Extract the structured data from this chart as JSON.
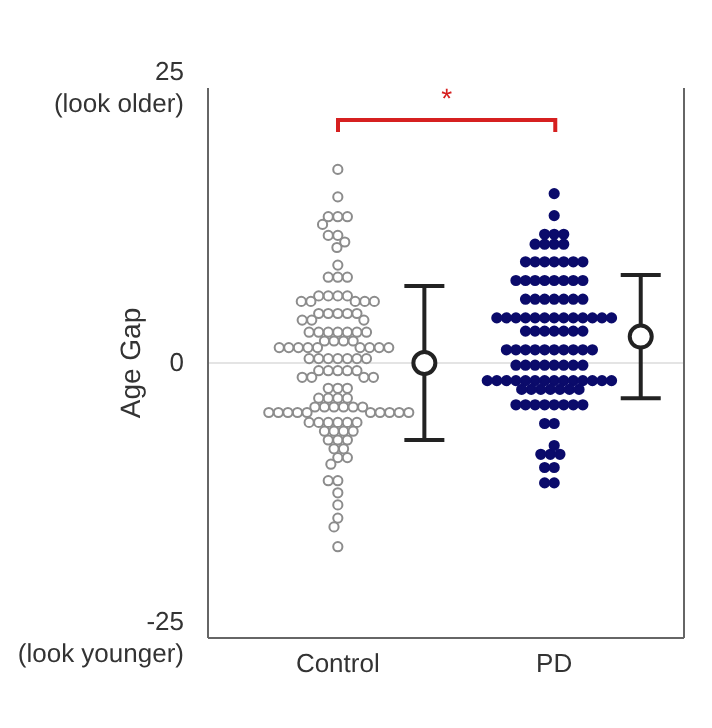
{
  "chart_data": {
    "type": "scatter",
    "ylabel": "Age Gap",
    "ylim": [
      -25,
      25
    ],
    "yticks": [
      {
        "value": -25,
        "label": "-25\n(look younger)"
      },
      {
        "value": 0,
        "label": "0"
      },
      {
        "value": 25,
        "label": "25\n(look older)"
      }
    ],
    "categories": [
      "Control",
      "PD"
    ],
    "marker": "circle",
    "annotations": [
      "*"
    ],
    "ref_lines": [
      {
        "axis": "y",
        "value": 0,
        "color": "#e4e4e4"
      }
    ],
    "series": [
      {
        "color": "#8c8c8c",
        "x": [
          "Control",
          "Control",
          "Control",
          "Control",
          "Control",
          "Control",
          "Control",
          "Control",
          "Control",
          "Control",
          "Control",
          "Control",
          "Control",
          "Control",
          "Control",
          "Control",
          "Control",
          "Control",
          "Control",
          "Control",
          "Control",
          "Control",
          "Control",
          "Control",
          "Control",
          "Control",
          "Control",
          "Control",
          "Control",
          "Control",
          "Control",
          "Control",
          "Control",
          "Control",
          "Control",
          "Control",
          "Control",
          "Control",
          "Control",
          "Control",
          "Control",
          "Control",
          "Control",
          "Control",
          "Control",
          "Control",
          "Control",
          "Control",
          "Control",
          "Control",
          "Control",
          "Control",
          "Control",
          "Control",
          "Control",
          "Control",
          "Control",
          "Control",
          "Control",
          "Control",
          "Control",
          "Control",
          "Control",
          "Control",
          "Control",
          "Control",
          "Control",
          "Control",
          "Control",
          "Control",
          "Control",
          "Control",
          "Control",
          "Control",
          "Control",
          "Control",
          "Control",
          "Control",
          "Control",
          "Control",
          "Control",
          "Control",
          "Control",
          "Control",
          "Control",
          "Control",
          "Control",
          "Control",
          "Control",
          "Control",
          "Control",
          "Control",
          "Control",
          "Control",
          "Control",
          "Control",
          "Control",
          "Control",
          "Control",
          "Control",
          "Control",
          "Control",
          "Control",
          "Control",
          "Control",
          "Control",
          "Control",
          "Control",
          "Control",
          "Control",
          "Control",
          "Control",
          "Control",
          "Control",
          "Control"
        ],
        "values": [
          17.6,
          15.1,
          13.3,
          13.3,
          13.3,
          12.6,
          11.6,
          11.6,
          11.0,
          10.5,
          8.9,
          7.8,
          7.8,
          7.8,
          6.1,
          6.1,
          6.1,
          6.1,
          5.6,
          5.6,
          5.6,
          5.6,
          5.6,
          4.5,
          4.5,
          4.5,
          4.5,
          4.5,
          3.9,
          3.9,
          3.9,
          2.8,
          2.8,
          2.8,
          2.8,
          2.8,
          2.8,
          2.8,
          2.0,
          2.0,
          2.0,
          2.0,
          1.4,
          1.4,
          1.4,
          1.4,
          1.4,
          1.4,
          1.4,
          1.4,
          1.4,
          0.4,
          0.4,
          0.4,
          0.4,
          0.4,
          0.4,
          0.4,
          -0.7,
          -0.7,
          -0.7,
          -0.7,
          -0.7,
          -1.3,
          -1.3,
          -1.3,
          -1.3,
          -2.3,
          -2.3,
          -2.3,
          -3.2,
          -3.2,
          -3.2,
          -3.2,
          -4.0,
          -4.0,
          -4.0,
          -4.0,
          -4.0,
          -4.0,
          -4.5,
          -4.5,
          -4.5,
          -4.5,
          -4.5,
          -4.5,
          -4.5,
          -4.5,
          -4.5,
          -4.5,
          -5.4,
          -5.4,
          -5.4,
          -5.4,
          -5.4,
          -5.4,
          -6.2,
          -6.2,
          -6.2,
          -6.2,
          -7.0,
          -7.0,
          -7.0,
          -7.8,
          -7.8,
          -8.6,
          -8.6,
          -9.2,
          -10.7,
          -10.7,
          -11.8,
          -12.9,
          -14.1,
          -14.9,
          -16.7
        ]
      },
      {
        "color": "#0b0b6b",
        "x": [
          "PD",
          "PD",
          "PD",
          "PD",
          "PD",
          "PD",
          "PD",
          "PD",
          "PD",
          "PD",
          "PD",
          "PD",
          "PD",
          "PD",
          "PD",
          "PD",
          "PD",
          "PD",
          "PD",
          "PD",
          "PD",
          "PD",
          "PD",
          "PD",
          "PD",
          "PD",
          "PD",
          "PD",
          "PD",
          "PD",
          "PD",
          "PD",
          "PD",
          "PD",
          "PD",
          "PD",
          "PD",
          "PD",
          "PD",
          "PD",
          "PD",
          "PD",
          "PD",
          "PD",
          "PD",
          "PD",
          "PD",
          "PD",
          "PD",
          "PD",
          "PD",
          "PD",
          "PD",
          "PD",
          "PD",
          "PD",
          "PD",
          "PD",
          "PD",
          "PD",
          "PD",
          "PD",
          "PD",
          "PD",
          "PD",
          "PD",
          "PD",
          "PD",
          "PD",
          "PD",
          "PD",
          "PD",
          "PD",
          "PD",
          "PD",
          "PD",
          "PD",
          "PD",
          "PD",
          "PD",
          "PD",
          "PD",
          "PD",
          "PD",
          "PD",
          "PD",
          "PD",
          "PD",
          "PD",
          "PD",
          "PD",
          "PD",
          "PD",
          "PD",
          "PD",
          "PD",
          "PD",
          "PD",
          "PD",
          "PD",
          "PD",
          "PD",
          "PD",
          "PD",
          "PD",
          "PD",
          "PD",
          "PD"
        ],
        "values": [
          15.4,
          13.4,
          11.7,
          11.7,
          11.7,
          10.8,
          10.8,
          10.8,
          10.8,
          9.2,
          9.2,
          9.2,
          9.2,
          9.2,
          9.2,
          9.2,
          7.5,
          7.5,
          7.5,
          7.5,
          7.5,
          7.5,
          7.5,
          7.5,
          5.8,
          5.8,
          5.8,
          5.8,
          5.8,
          5.8,
          5.8,
          4.1,
          4.1,
          4.1,
          4.1,
          4.1,
          4.1,
          4.1,
          4.1,
          4.1,
          4.1,
          4.1,
          4.1,
          4.1,
          2.9,
          2.9,
          2.9,
          2.9,
          2.9,
          2.9,
          2.9,
          1.2,
          1.2,
          1.2,
          1.2,
          1.2,
          1.2,
          1.2,
          1.2,
          1.2,
          1.2,
          -0.2,
          -0.2,
          -0.2,
          -0.2,
          -0.2,
          -0.2,
          -0.2,
          -0.2,
          -1.6,
          -1.6,
          -1.6,
          -1.6,
          -1.6,
          -1.6,
          -1.6,
          -1.6,
          -1.6,
          -1.6,
          -1.6,
          -1.6,
          -1.6,
          -1.6,
          -2.4,
          -2.4,
          -2.4,
          -2.4,
          -2.4,
          -2.4,
          -2.4,
          -3.8,
          -3.8,
          -3.8,
          -3.8,
          -3.8,
          -3.8,
          -3.8,
          -3.8,
          -5.5,
          -5.5,
          -7.5,
          -8.3,
          -8.3,
          -8.3,
          -9.5,
          -9.5,
          -10.9,
          -10.9
        ]
      },
      {
        "color": "#222222",
        "x": [
          "Control",
          "PD"
        ],
        "values": [
          0,
          2.4
        ],
        "errors": [
          7,
          [
            -3.2,
            8.0
          ]
        ]
      }
    ]
  }
}
